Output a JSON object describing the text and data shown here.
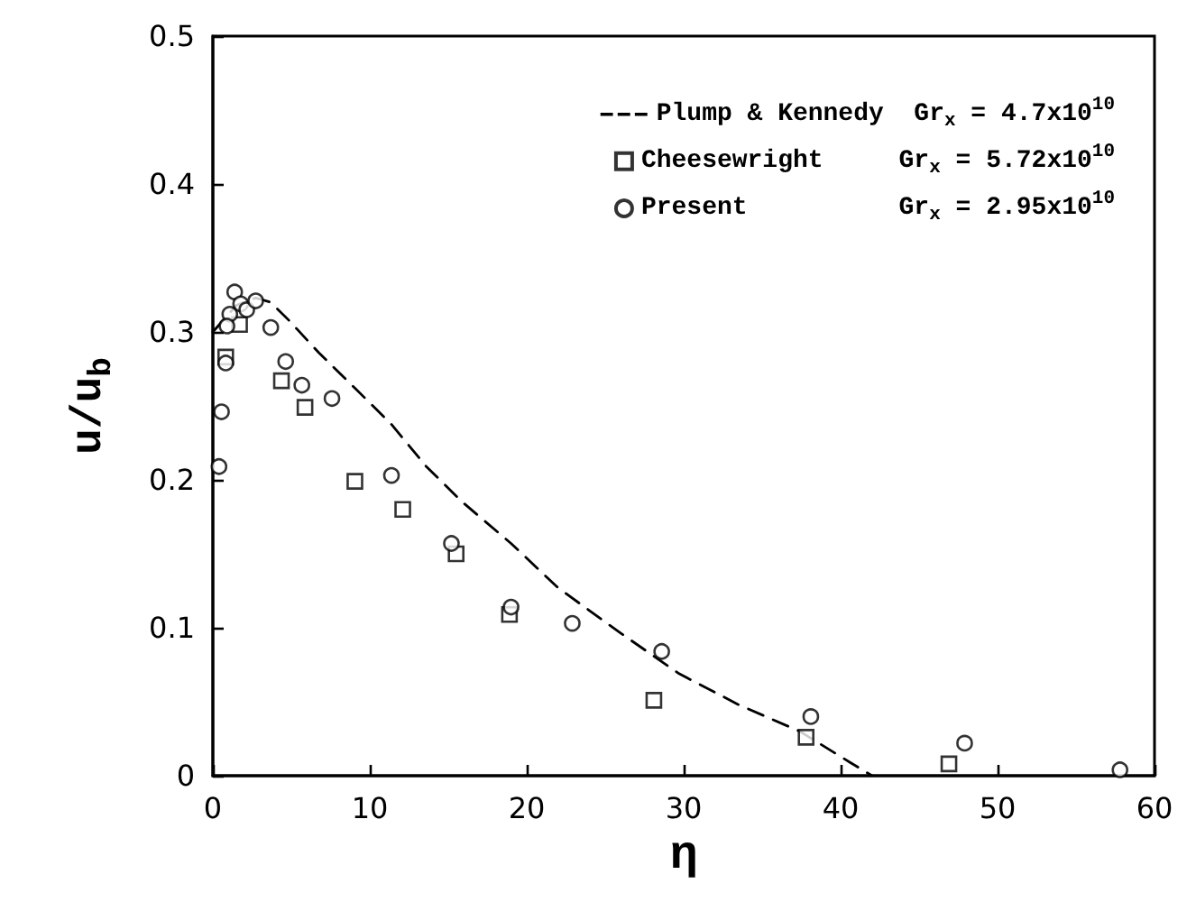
{
  "chart_data": {
    "type": "scatter",
    "xlabel": "η",
    "ylabel": "u/u$_{b}$",
    "xlim": [
      0,
      60
    ],
    "xticks": [
      0,
      10,
      20,
      30,
      40,
      50,
      60
    ],
    "ylim": [
      0,
      0.5
    ],
    "yticks": [
      0,
      0.1,
      0.2,
      0.3,
      0.4,
      0.5
    ],
    "grid": false,
    "legend": "top right",
    "series": [
      {
        "name": "Plump & Kennedy  Gr$_{x}$ = 4.7x10$^{10}$",
        "type": "line",
        "color": "#000000",
        "marker": "none",
        "line_style": "dashed",
        "x": [
          0,
          1.5,
          2.73,
          3.69,
          4.83,
          6.75,
          9.05,
          11.34,
          13.6,
          15.9,
          19.0,
          22.0,
          25.9,
          29.7,
          33.5,
          37.4,
          40.6,
          42.0
        ],
        "values": [
          0.3,
          0.318,
          0.323,
          0.32,
          0.308,
          0.286,
          0.262,
          0.238,
          0.209,
          0.185,
          0.157,
          0.127,
          0.097,
          0.069,
          0.048,
          0.03,
          0.009,
          0
        ]
      },
      {
        "name": "Cheesewright     Gr$_{x}$ = 5.72x10$^{10}$",
        "color": "#000000",
        "marker": "square",
        "x": [
          0.82,
          1.7,
          4.37,
          5.87,
          9.05,
          12.1,
          15.5,
          18.9,
          28.1,
          37.8,
          46.9
        ],
        "values": [
          0.283,
          0.305,
          0.267,
          0.249,
          0.199,
          0.18,
          0.15,
          0.109,
          0.051,
          0.026,
          0.008
        ]
      },
      {
        "name": "Present          Gr$_{x}$ = 2.95x10$^{10}$",
        "color": "#000000",
        "marker": "circle",
        "x": [
          1.39,
          1.08,
          0.9,
          1.77,
          2.16,
          2.73,
          3.69,
          0.82,
          4.64,
          5.67,
          7.59,
          0.55,
          0.39,
          11.38,
          15.2,
          19.0,
          22.9,
          28.6,
          38.1,
          47.9,
          57.8
        ],
        "values": [
          0.327,
          0.312,
          0.304,
          0.319,
          0.315,
          0.321,
          0.303,
          0.279,
          0.28,
          0.264,
          0.255,
          0.246,
          0.209,
          0.203,
          0.157,
          0.114,
          0.103,
          0.084,
          0.04,
          0.022,
          0.004
        ]
      }
    ]
  }
}
